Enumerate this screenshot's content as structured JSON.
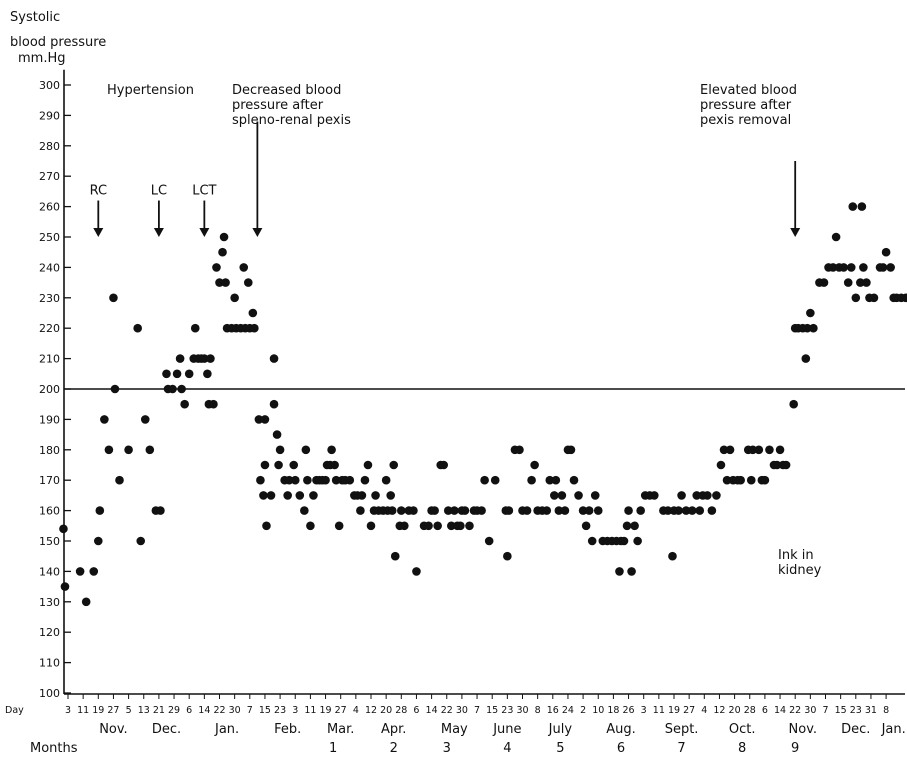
{
  "chart_data": {
    "type": "scatter",
    "title": "",
    "ylabel_lines": [
      "Systolic",
      "blood pressure",
      "mm.Hg"
    ],
    "ylim": [
      100,
      305
    ],
    "yticks": [
      100,
      110,
      120,
      130,
      140,
      150,
      160,
      170,
      180,
      190,
      200,
      210,
      220,
      230,
      240,
      250,
      260,
      270,
      280,
      290,
      300
    ],
    "reference_line": 200,
    "day_label": "Day",
    "days": [
      "3",
      "11",
      "19",
      "27",
      "5",
      "13",
      "21",
      "29",
      "6",
      "14",
      "22",
      "30",
      "7",
      "15",
      "23",
      "3",
      "11",
      "19",
      "27",
      "4",
      "12",
      "20",
      "28",
      "6",
      "14",
      "22",
      "30",
      "7",
      "15",
      "23",
      "30",
      "8",
      "16",
      "24",
      "2",
      "10",
      "18",
      "26",
      "3",
      "11",
      "19",
      "27",
      "4",
      "12",
      "20",
      "28",
      "6",
      "14",
      "22",
      "30",
      "7",
      "15",
      "23",
      "31",
      "8"
    ],
    "months": [
      {
        "label": "Nov.",
        "day_index": 3
      },
      {
        "label": "Dec.",
        "day_index": 6.5
      },
      {
        "label": "Jan.",
        "day_index": 10.5
      },
      {
        "label": "Feb.",
        "day_index": 14.5
      },
      {
        "label": "Mar.",
        "day_index": 18
      },
      {
        "label": "Apr.",
        "day_index": 21.5
      },
      {
        "label": "May",
        "day_index": 25.5
      },
      {
        "label": "June",
        "day_index": 29
      },
      {
        "label": "July",
        "day_index": 32.5
      },
      {
        "label": "Aug.",
        "day_index": 36.5
      },
      {
        "label": "Sept.",
        "day_index": 40.5
      },
      {
        "label": "Oct.",
        "day_index": 44.5
      },
      {
        "label": "Nov.",
        "day_index": 48.5
      },
      {
        "label": "Dec.",
        "day_index": 52
      },
      {
        "label": "Jan.",
        "day_index": 54.5
      }
    ],
    "months_label": "Months",
    "month_numbers": [
      {
        "label": "1",
        "day_index": 17.5
      },
      {
        "label": "2",
        "day_index": 21.5
      },
      {
        "label": "3",
        "day_index": 25
      },
      {
        "label": "4",
        "day_index": 29
      },
      {
        "label": "5",
        "day_index": 32.5
      },
      {
        "label": "6",
        "day_index": 36.5
      },
      {
        "label": "7",
        "day_index": 40.5
      },
      {
        "label": "8",
        "day_index": 44.5
      },
      {
        "label": "9",
        "day_index": 48
      }
    ],
    "annotations": [
      {
        "id": "hypertension",
        "lines": [
          "Hypertension"
        ],
        "day_index": 6.5,
        "y": 297
      },
      {
        "id": "decreased",
        "lines": [
          "Decreased blood",
          "pressure after",
          "spleno-renal pexis"
        ],
        "day_index": 14.5,
        "y": 297
      },
      {
        "id": "elevated",
        "lines": [
          "Elevated blood",
          "pressure after",
          "pexis removal"
        ],
        "day_index": 48.5,
        "y": 297
      },
      {
        "id": "ink",
        "lines": [
          "Ink in",
          "kidney"
        ],
        "day_index": 48.8,
        "y": 144
      }
    ],
    "arrows": [
      {
        "label": "RC",
        "day_index": 2,
        "y_top": 262,
        "y_bottom": 250
      },
      {
        "label": "LC",
        "day_index": 6,
        "y_top": 262,
        "y_bottom": 250
      },
      {
        "label": "LCT",
        "day_index": 9,
        "y_top": 262,
        "y_bottom": 250
      },
      {
        "label": "",
        "day_index": 12.5,
        "y_top": 288,
        "y_bottom": 250
      },
      {
        "label": "",
        "day_index": 48,
        "y_top": 275,
        "y_bottom": 250
      }
    ],
    "points": [
      [
        -0.3,
        154
      ],
      [
        -0.2,
        135
      ],
      [
        0.8,
        140
      ],
      [
        1.2,
        130
      ],
      [
        1.7,
        140
      ],
      [
        2.0,
        150
      ],
      [
        2.1,
        160
      ],
      [
        2.4,
        190
      ],
      [
        2.7,
        180
      ],
      [
        3.0,
        230
      ],
      [
        3.1,
        200
      ],
      [
        3.4,
        170
      ],
      [
        4.0,
        180
      ],
      [
        4.6,
        220
      ],
      [
        4.8,
        150
      ],
      [
        5.1,
        190
      ],
      [
        5.4,
        180
      ],
      [
        5.8,
        160
      ],
      [
        6.1,
        160
      ],
      [
        6.5,
        205
      ],
      [
        6.6,
        200
      ],
      [
        6.9,
        200
      ],
      [
        7.2,
        205
      ],
      [
        7.4,
        210
      ],
      [
        7.5,
        200
      ],
      [
        7.7,
        195
      ],
      [
        8.0,
        205
      ],
      [
        8.3,
        210
      ],
      [
        8.4,
        220
      ],
      [
        8.6,
        210
      ],
      [
        8.8,
        210
      ],
      [
        9.0,
        210
      ],
      [
        9.2,
        205
      ],
      [
        9.4,
        210
      ],
      [
        9.3,
        195
      ],
      [
        9.6,
        195
      ],
      [
        9.8,
        240
      ],
      [
        10.0,
        235
      ],
      [
        10.2,
        245
      ],
      [
        10.3,
        250
      ],
      [
        10.4,
        235
      ],
      [
        10.5,
        220
      ],
      [
        10.8,
        220
      ],
      [
        11.0,
        230
      ],
      [
        11.1,
        220
      ],
      [
        11.4,
        220
      ],
      [
        11.6,
        240
      ],
      [
        11.7,
        220
      ],
      [
        11.9,
        235
      ],
      [
        12.0,
        220
      ],
      [
        12.2,
        225
      ],
      [
        12.3,
        220
      ],
      [
        12.6,
        190
      ],
      [
        12.7,
        170
      ],
      [
        12.9,
        165
      ],
      [
        13.0,
        175
      ],
      [
        13.0,
        190
      ],
      [
        13.1,
        155
      ],
      [
        13.4,
        165
      ],
      [
        13.6,
        195
      ],
      [
        13.6,
        210
      ],
      [
        13.8,
        185
      ],
      [
        13.9,
        175
      ],
      [
        14.0,
        180
      ],
      [
        14.3,
        170
      ],
      [
        14.5,
        165
      ],
      [
        14.6,
        170
      ],
      [
        14.9,
        175
      ],
      [
        15.0,
        170
      ],
      [
        15.3,
        165
      ],
      [
        15.6,
        160
      ],
      [
        15.7,
        180
      ],
      [
        15.8,
        170
      ],
      [
        16.0,
        155
      ],
      [
        16.2,
        165
      ],
      [
        16.4,
        170
      ],
      [
        16.6,
        170
      ],
      [
        16.8,
        170
      ],
      [
        17.0,
        170
      ],
      [
        17.1,
        175
      ],
      [
        17.3,
        175
      ],
      [
        17.4,
        180
      ],
      [
        17.6,
        175
      ],
      [
        17.7,
        170
      ],
      [
        17.9,
        155
      ],
      [
        18.1,
        170
      ],
      [
        18.3,
        170
      ],
      [
        18.6,
        170
      ],
      [
        18.9,
        165
      ],
      [
        19.1,
        165
      ],
      [
        19.3,
        160
      ],
      [
        19.4,
        165
      ],
      [
        19.6,
        170
      ],
      [
        19.8,
        175
      ],
      [
        20.0,
        155
      ],
      [
        20.2,
        160
      ],
      [
        20.3,
        165
      ],
      [
        20.5,
        160
      ],
      [
        20.8,
        160
      ],
      [
        21.0,
        170
      ],
      [
        21.1,
        160
      ],
      [
        21.3,
        165
      ],
      [
        21.4,
        160
      ],
      [
        21.5,
        175
      ],
      [
        21.6,
        145
      ],
      [
        21.9,
        155
      ],
      [
        22.0,
        160
      ],
      [
        22.2,
        155
      ],
      [
        22.5,
        160
      ],
      [
        22.8,
        160
      ],
      [
        23.0,
        140
      ],
      [
        23.5,
        155
      ],
      [
        23.8,
        155
      ],
      [
        24.0,
        160
      ],
      [
        24.2,
        160
      ],
      [
        24.4,
        155
      ],
      [
        24.6,
        175
      ],
      [
        24.8,
        175
      ],
      [
        25.1,
        160
      ],
      [
        25.3,
        155
      ],
      [
        25.5,
        160
      ],
      [
        25.7,
        155
      ],
      [
        25.9,
        155
      ],
      [
        26.0,
        160
      ],
      [
        26.2,
        160
      ],
      [
        26.5,
        155
      ],
      [
        26.8,
        160
      ],
      [
        27.0,
        160
      ],
      [
        27.3,
        160
      ],
      [
        27.5,
        170
      ],
      [
        27.8,
        150
      ],
      [
        28.2,
        170
      ],
      [
        28.9,
        160
      ],
      [
        29.0,
        145
      ],
      [
        29.1,
        160
      ],
      [
        29.5,
        180
      ],
      [
        29.8,
        180
      ],
      [
        30.0,
        160
      ],
      [
        30.3,
        160
      ],
      [
        30.6,
        170
      ],
      [
        30.8,
        175
      ],
      [
        31.0,
        160
      ],
      [
        31.3,
        160
      ],
      [
        31.6,
        160
      ],
      [
        31.8,
        170
      ],
      [
        32.1,
        165
      ],
      [
        32.2,
        170
      ],
      [
        32.4,
        160
      ],
      [
        32.6,
        165
      ],
      [
        32.8,
        160
      ],
      [
        33.0,
        180
      ],
      [
        33.2,
        180
      ],
      [
        33.4,
        170
      ],
      [
        33.7,
        165
      ],
      [
        34.0,
        160
      ],
      [
        34.2,
        155
      ],
      [
        34.4,
        160
      ],
      [
        34.6,
        150
      ],
      [
        34.8,
        165
      ],
      [
        35.0,
        160
      ],
      [
        35.3,
        150
      ],
      [
        35.6,
        150
      ],
      [
        35.9,
        150
      ],
      [
        36.2,
        150
      ],
      [
        36.4,
        140
      ],
      [
        36.5,
        150
      ],
      [
        36.7,
        150
      ],
      [
        36.9,
        155
      ],
      [
        37.0,
        160
      ],
      [
        37.2,
        140
      ],
      [
        37.4,
        155
      ],
      [
        37.6,
        150
      ],
      [
        37.8,
        160
      ],
      [
        38.1,
        165
      ],
      [
        38.4,
        165
      ],
      [
        38.7,
        165
      ],
      [
        39.3,
        160
      ],
      [
        39.6,
        160
      ],
      [
        39.9,
        145
      ],
      [
        40.0,
        160
      ],
      [
        40.3,
        160
      ],
      [
        40.5,
        165
      ],
      [
        40.8,
        160
      ],
      [
        41.2,
        160
      ],
      [
        41.5,
        165
      ],
      [
        41.7,
        160
      ],
      [
        41.9,
        165
      ],
      [
        42.2,
        165
      ],
      [
        42.5,
        160
      ],
      [
        42.8,
        165
      ],
      [
        43.1,
        175
      ],
      [
        43.3,
        180
      ],
      [
        43.5,
        170
      ],
      [
        43.7,
        180
      ],
      [
        43.9,
        170
      ],
      [
        44.2,
        170
      ],
      [
        44.4,
        170
      ],
      [
        44.9,
        180
      ],
      [
        45.1,
        170
      ],
      [
        45.2,
        180
      ],
      [
        45.6,
        180
      ],
      [
        45.8,
        170
      ],
      [
        46.0,
        170
      ],
      [
        46.3,
        180
      ],
      [
        46.6,
        175
      ],
      [
        46.8,
        175
      ],
      [
        47.0,
        180
      ],
      [
        47.2,
        175
      ],
      [
        47.4,
        175
      ],
      [
        47.9,
        195
      ],
      [
        48.0,
        220
      ],
      [
        48.2,
        220
      ],
      [
        48.5,
        220
      ],
      [
        48.7,
        210
      ],
      [
        48.8,
        220
      ],
      [
        49.0,
        225
      ],
      [
        49.2,
        220
      ],
      [
        49.6,
        235
      ],
      [
        49.9,
        235
      ],
      [
        50.2,
        240
      ],
      [
        50.5,
        240
      ],
      [
        50.7,
        250
      ],
      [
        50.9,
        240
      ],
      [
        51.2,
        240
      ],
      [
        51.5,
        235
      ],
      [
        51.7,
        240
      ],
      [
        51.8,
        260
      ],
      [
        52.0,
        230
      ],
      [
        52.3,
        235
      ],
      [
        52.4,
        260
      ],
      [
        52.5,
        240
      ],
      [
        52.7,
        235
      ],
      [
        52.9,
        230
      ],
      [
        53.2,
        230
      ],
      [
        53.6,
        240
      ],
      [
        53.8,
        240
      ],
      [
        54.0,
        245
      ],
      [
        54.3,
        240
      ],
      [
        54.5,
        230
      ],
      [
        54.7,
        230
      ],
      [
        55.0,
        230
      ],
      [
        55.3,
        230
      ],
      [
        55.7,
        230
      ],
      [
        55.9,
        230
      ]
    ]
  }
}
